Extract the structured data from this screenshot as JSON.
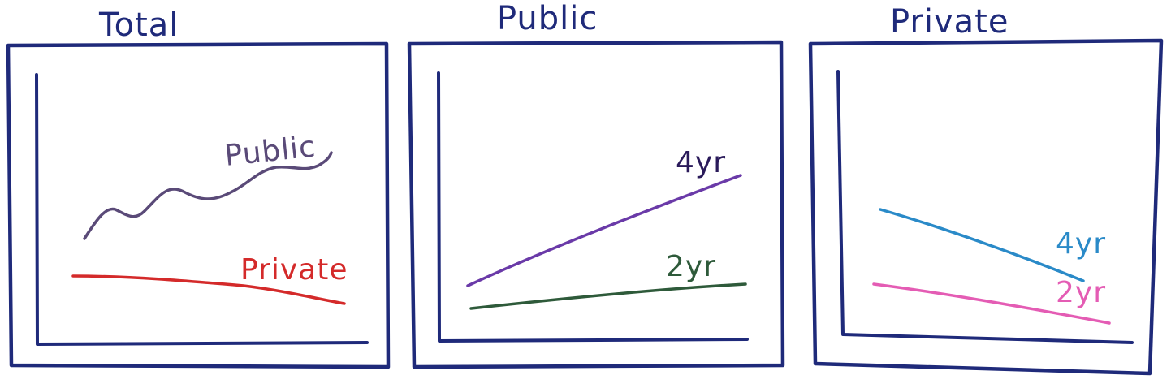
{
  "panels": [
    {
      "title": "Total",
      "lines": [
        {
          "label": "Public",
          "color": "#5a4a78",
          "trend": "rising"
        },
        {
          "label": "Private",
          "color": "#d42a2a",
          "trend": "slightly falling"
        }
      ]
    },
    {
      "title": "Public",
      "lines": [
        {
          "label": "4yr",
          "color": "#6a3aa8",
          "trend": "rising"
        },
        {
          "label": "2yr",
          "color": "#2e5a3a",
          "trend": "slightly rising"
        }
      ]
    },
    {
      "title": "Private",
      "lines": [
        {
          "label": "4yr",
          "color": "#2a8ac8",
          "trend": "falling"
        },
        {
          "label": "2yr",
          "color": "#e45cb4",
          "trend": "falling"
        }
      ]
    }
  ],
  "colors": {
    "ink": "#1f2a7a",
    "background": "#ffffff"
  }
}
